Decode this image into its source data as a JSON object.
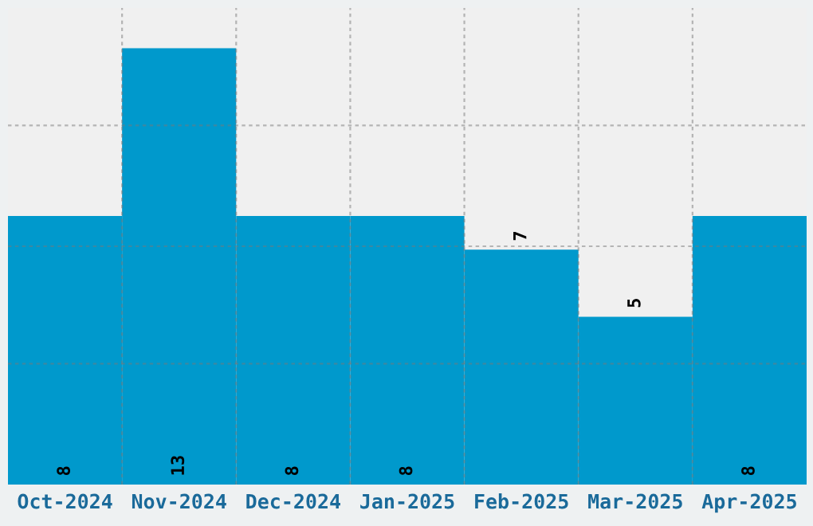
{
  "chart_data": {
    "type": "bar",
    "categories": [
      "Oct-2024",
      "Nov-2024",
      "Dec-2024",
      "Jan-2025",
      "Feb-2025",
      "Mar-2025",
      "Apr-2025"
    ],
    "values": [
      8,
      13,
      8,
      8,
      7,
      5,
      8
    ],
    "color": "#0099cc",
    "ylim": [
      0,
      14.2
    ],
    "yticks": [
      {
        "value": 3.6,
        "label": null
      },
      {
        "value": 7.1,
        "label": null
      },
      {
        "value": 10.7,
        "label": null
      }
    ],
    "tick_labels": "x",
    "grid": true,
    "data_labels": true
  }
}
